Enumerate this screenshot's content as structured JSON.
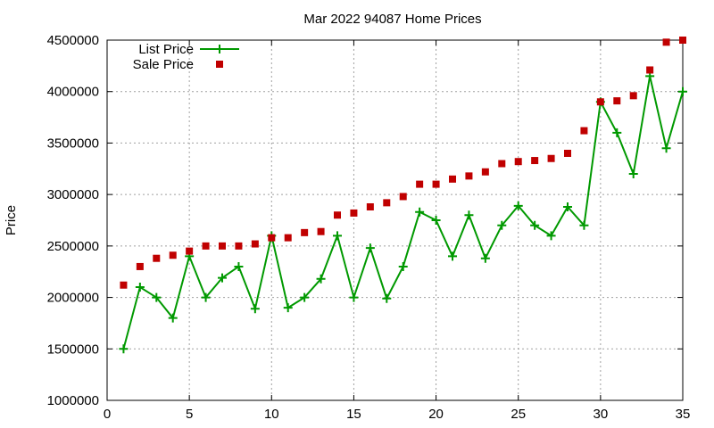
{
  "chart_data": {
    "type": "line",
    "title": "Mar 2022 94087 Home Prices",
    "xlabel": "",
    "ylabel": "Price",
    "xlim": [
      0,
      35
    ],
    "ylim": [
      1000000,
      4500000
    ],
    "x_ticks": [
      0,
      5,
      10,
      15,
      20,
      25,
      30,
      35
    ],
    "y_ticks": [
      1000000,
      1500000,
      2000000,
      2500000,
      3000000,
      3500000,
      4000000,
      4500000
    ],
    "grid": true,
    "legend_position": "top-left",
    "x": [
      1,
      2,
      3,
      4,
      5,
      6,
      7,
      8,
      9,
      10,
      11,
      12,
      13,
      14,
      15,
      16,
      17,
      18,
      19,
      20,
      21,
      22,
      23,
      24,
      25,
      26,
      27,
      28,
      29,
      30,
      31,
      32,
      33,
      34,
      35
    ],
    "series": [
      {
        "name": "List Price",
        "style": "linespoints",
        "color": "#009900",
        "marker": "plus",
        "values": [
          1500000,
          2100000,
          2000000,
          1800000,
          2400000,
          2000000,
          2190000,
          2300000,
          1890000,
          2600000,
          1900000,
          2000000,
          2180000,
          2600000,
          2000000,
          2480000,
          1990000,
          2300000,
          2830000,
          2750000,
          2400000,
          2800000,
          2380000,
          2700000,
          2890000,
          2700000,
          2600000,
          2880000,
          2700000,
          3900000,
          3600000,
          3200000,
          4150000,
          3450000,
          4000000
        ]
      },
      {
        "name": "Sale Price",
        "style": "points",
        "color": "#c00000",
        "marker": "square",
        "values": [
          2120000,
          2300000,
          2380000,
          2410000,
          2450000,
          2500000,
          2500000,
          2500000,
          2520000,
          2580000,
          2580000,
          2630000,
          2640000,
          2800000,
          2820000,
          2880000,
          2920000,
          2980000,
          3100000,
          3100000,
          3150000,
          3180000,
          3220000,
          3300000,
          3320000,
          3330000,
          3350000,
          3400000,
          3620000,
          3900000,
          3910000,
          3960000,
          4210000,
          4480000,
          4500000
        ]
      }
    ]
  }
}
